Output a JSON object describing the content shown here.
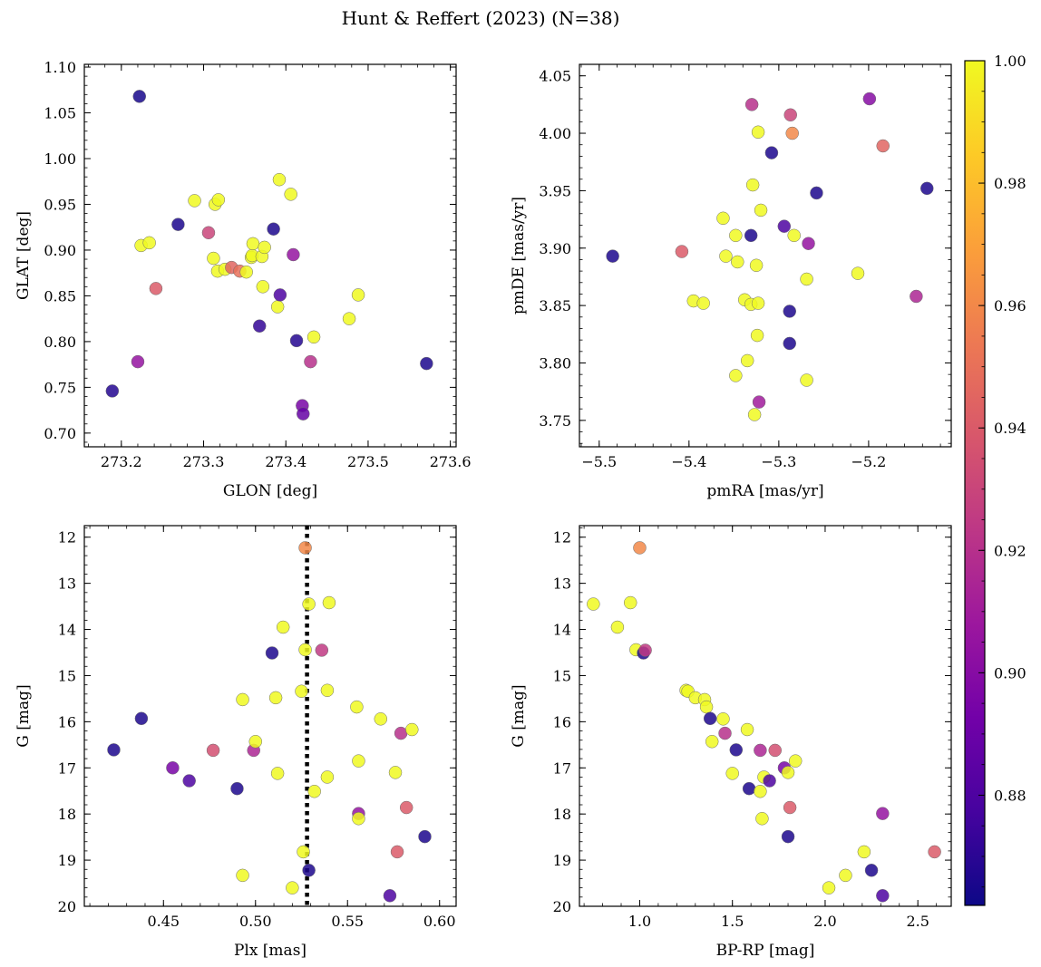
{
  "figure_title": "Hunt & Reffert (2023) (N=38)",
  "colormap": [
    "#0d0887",
    "#46039f",
    "#7201a8",
    "#9c179e",
    "#bd3786",
    "#d8576b",
    "#ed7953",
    "#fb9f3a",
    "#fdca26",
    "#f0f921"
  ],
  "colorbar": {
    "min": 0.862,
    "max": 1.0,
    "ticks": [
      0.88,
      0.9,
      0.92,
      0.94,
      0.96,
      0.98,
      1.0
    ],
    "tick_labels": [
      "0.88",
      "0.90",
      "0.92",
      "0.94",
      "0.96",
      "0.98",
      "1.00"
    ]
  },
  "chart_data": [
    {
      "type": "scatter",
      "id": "glon-glat",
      "xlabel": "GLON [deg]",
      "ylabel": "GLAT [deg]",
      "xlim": [
        273.155,
        273.607
      ],
      "ylim": [
        0.685,
        1.103
      ],
      "y_inverted": false,
      "xticks": [
        273.2,
        273.3,
        273.4,
        273.5,
        273.6
      ],
      "xtick_labels": [
        "273.2",
        "273.3",
        "273.4",
        "273.5",
        "273.6"
      ],
      "yticks": [
        0.7,
        0.75,
        0.8,
        0.85,
        0.9,
        0.95,
        1.0,
        1.05,
        1.1
      ],
      "ytick_labels": [
        "0.70",
        "0.75",
        "0.80",
        "0.85",
        "0.90",
        "0.95",
        "1.00",
        "1.05",
        "1.10"
      ],
      "points": [
        {
          "x": 273.222,
          "y": 1.068,
          "c": 0.865
        },
        {
          "x": 273.189,
          "y": 0.746,
          "c": 0.868
        },
        {
          "x": 273.22,
          "y": 0.778,
          "c": 0.905
        },
        {
          "x": 273.242,
          "y": 0.858,
          "c": 0.94
        },
        {
          "x": 273.224,
          "y": 0.905,
          "c": 1.0
        },
        {
          "x": 273.234,
          "y": 0.908,
          "c": 1.0
        },
        {
          "x": 273.269,
          "y": 0.928,
          "c": 0.866
        },
        {
          "x": 273.289,
          "y": 0.954,
          "c": 1.0
        },
        {
          "x": 273.306,
          "y": 0.919,
          "c": 0.93
        },
        {
          "x": 273.312,
          "y": 0.891,
          "c": 1.0
        },
        {
          "x": 273.317,
          "y": 0.877,
          "c": 1.0
        },
        {
          "x": 273.314,
          "y": 0.95,
          "c": 1.0
        },
        {
          "x": 273.318,
          "y": 0.955,
          "c": 1.0
        },
        {
          "x": 273.326,
          "y": 0.879,
          "c": 1.0
        },
        {
          "x": 273.334,
          "y": 0.881,
          "c": 0.945
        },
        {
          "x": 273.344,
          "y": 0.877,
          "c": 0.95
        },
        {
          "x": 273.352,
          "y": 0.876,
          "c": 1.0
        },
        {
          "x": 273.358,
          "y": 0.892,
          "c": 1.0
        },
        {
          "x": 273.359,
          "y": 0.894,
          "c": 1.0
        },
        {
          "x": 273.36,
          "y": 0.907,
          "c": 1.0
        },
        {
          "x": 273.371,
          "y": 0.893,
          "c": 1.0
        },
        {
          "x": 273.374,
          "y": 0.903,
          "c": 1.0
        },
        {
          "x": 273.372,
          "y": 0.86,
          "c": 1.0
        },
        {
          "x": 273.368,
          "y": 0.817,
          "c": 0.872
        },
        {
          "x": 273.385,
          "y": 0.923,
          "c": 0.866
        },
        {
          "x": 273.39,
          "y": 0.838,
          "c": 1.0
        },
        {
          "x": 273.392,
          "y": 0.977,
          "c": 1.0
        },
        {
          "x": 273.393,
          "y": 0.851,
          "c": 0.88
        },
        {
          "x": 273.406,
          "y": 0.961,
          "c": 1.0
        },
        {
          "x": 273.409,
          "y": 0.895,
          "c": 0.905
        },
        {
          "x": 273.413,
          "y": 0.801,
          "c": 0.868
        },
        {
          "x": 273.42,
          "y": 0.73,
          "c": 0.895
        },
        {
          "x": 273.421,
          "y": 0.721,
          "c": 0.888
        },
        {
          "x": 273.43,
          "y": 0.778,
          "c": 0.92
        },
        {
          "x": 273.434,
          "y": 0.805,
          "c": 1.0
        },
        {
          "x": 273.477,
          "y": 0.825,
          "c": 1.0
        },
        {
          "x": 273.488,
          "y": 0.851,
          "c": 1.0
        },
        {
          "x": 273.571,
          "y": 0.776,
          "c": 0.866
        }
      ]
    },
    {
      "type": "scatter",
      "id": "pmra-pmde",
      "xlabel": "pmRA [mas/yr]",
      "ylabel": "pmDE [mas/yr]",
      "xlim": [
        -5.522,
        -5.108
      ],
      "ylim": [
        3.727,
        4.06
      ],
      "y_inverted": false,
      "xticks": [
        -5.5,
        -5.4,
        -5.3,
        -5.2
      ],
      "xtick_labels": [
        "−5.5",
        "−5.4",
        "−5.3",
        "−5.2"
      ],
      "yticks": [
        3.75,
        3.8,
        3.85,
        3.9,
        3.95,
        4.0,
        4.05
      ],
      "ytick_labels": [
        "3.75",
        "3.80",
        "3.85",
        "3.90",
        "3.95",
        "4.00",
        "4.05"
      ],
      "points": [
        {
          "x": -5.485,
          "y": 3.893,
          "c": 0.866
        },
        {
          "x": -5.408,
          "y": 3.897,
          "c": 0.94
        },
        {
          "x": -5.395,
          "y": 3.854,
          "c": 1.0
        },
        {
          "x": -5.384,
          "y": 3.852,
          "c": 1.0
        },
        {
          "x": -5.362,
          "y": 3.926,
          "c": 1.0
        },
        {
          "x": -5.359,
          "y": 3.893,
          "c": 1.0
        },
        {
          "x": -5.348,
          "y": 3.911,
          "c": 1.0
        },
        {
          "x": -5.346,
          "y": 3.888,
          "c": 1.0
        },
        {
          "x": -5.348,
          "y": 3.789,
          "c": 1.0
        },
        {
          "x": -5.338,
          "y": 3.855,
          "c": 1.0
        },
        {
          "x": -5.335,
          "y": 3.802,
          "c": 1.0
        },
        {
          "x": -5.331,
          "y": 3.851,
          "c": 1.0
        },
        {
          "x": -5.331,
          "y": 3.911,
          "c": 0.866
        },
        {
          "x": -5.33,
          "y": 4.025,
          "c": 0.92
        },
        {
          "x": -5.329,
          "y": 3.955,
          "c": 1.0
        },
        {
          "x": -5.327,
          "y": 3.755,
          "c": 1.0
        },
        {
          "x": -5.325,
          "y": 3.885,
          "c": 1.0
        },
        {
          "x": -5.324,
          "y": 3.824,
          "c": 1.0
        },
        {
          "x": -5.323,
          "y": 3.852,
          "c": 1.0
        },
        {
          "x": -5.323,
          "y": 4.001,
          "c": 1.0
        },
        {
          "x": -5.322,
          "y": 3.766,
          "c": 0.91
        },
        {
          "x": -5.32,
          "y": 3.933,
          "c": 1.0
        },
        {
          "x": -5.308,
          "y": 3.983,
          "c": 0.866
        },
        {
          "x": -5.294,
          "y": 3.919,
          "c": 0.88
        },
        {
          "x": -5.288,
          "y": 3.845,
          "c": 0.866
        },
        {
          "x": -5.288,
          "y": 3.817,
          "c": 0.866
        },
        {
          "x": -5.287,
          "y": 4.016,
          "c": 0.93
        },
        {
          "x": -5.285,
          "y": 4.0,
          "c": 0.96
        },
        {
          "x": -5.283,
          "y": 3.911,
          "c": 1.0
        },
        {
          "x": -5.269,
          "y": 3.873,
          "c": 1.0
        },
        {
          "x": -5.269,
          "y": 3.785,
          "c": 1.0
        },
        {
          "x": -5.267,
          "y": 3.904,
          "c": 0.905
        },
        {
          "x": -5.258,
          "y": 3.948,
          "c": 0.866
        },
        {
          "x": -5.212,
          "y": 3.878,
          "c": 1.0
        },
        {
          "x": -5.199,
          "y": 4.03,
          "c": 0.9
        },
        {
          "x": -5.184,
          "y": 3.989,
          "c": 0.945
        },
        {
          "x": -5.147,
          "y": 3.858,
          "c": 0.915
        },
        {
          "x": -5.135,
          "y": 3.952,
          "c": 0.866
        }
      ]
    },
    {
      "type": "scatter",
      "id": "plx-g",
      "xlabel": "Plx [mas]",
      "ylabel": "G [mag]",
      "xlim": [
        0.407,
        0.609
      ],
      "ylim": [
        20.0,
        11.75
      ],
      "y_inverted": true,
      "reference_line": {
        "axis": "x",
        "value": 0.528,
        "style": "dotted"
      },
      "xticks": [
        0.45,
        0.5,
        0.55,
        0.6
      ],
      "xtick_labels": [
        "0.45",
        "0.50",
        "0.55",
        "0.60"
      ],
      "yticks": [
        12,
        13,
        14,
        15,
        16,
        17,
        18,
        19,
        20
      ],
      "ytick_labels": [
        "12",
        "13",
        "14",
        "15",
        "16",
        "17",
        "18",
        "19",
        "20"
      ],
      "points": [
        {
          "x": 0.423,
          "y": 16.61,
          "c": 0.866
        },
        {
          "x": 0.438,
          "y": 15.93,
          "c": 0.866
        },
        {
          "x": 0.455,
          "y": 17.0,
          "c": 0.895
        },
        {
          "x": 0.464,
          "y": 17.28,
          "c": 0.88
        },
        {
          "x": 0.477,
          "y": 16.62,
          "c": 0.935
        },
        {
          "x": 0.49,
          "y": 17.45,
          "c": 0.866
        },
        {
          "x": 0.493,
          "y": 15.52,
          "c": 1.0
        },
        {
          "x": 0.493,
          "y": 19.33,
          "c": 1.0
        },
        {
          "x": 0.499,
          "y": 16.62,
          "c": 0.915
        },
        {
          "x": 0.5,
          "y": 16.43,
          "c": 1.0
        },
        {
          "x": 0.509,
          "y": 14.51,
          "c": 0.866
        },
        {
          "x": 0.511,
          "y": 15.48,
          "c": 1.0
        },
        {
          "x": 0.512,
          "y": 17.12,
          "c": 1.0
        },
        {
          "x": 0.515,
          "y": 13.95,
          "c": 1.0
        },
        {
          "x": 0.52,
          "y": 19.6,
          "c": 1.0
        },
        {
          "x": 0.525,
          "y": 15.34,
          "c": 1.0
        },
        {
          "x": 0.526,
          "y": 18.82,
          "c": 1.0
        },
        {
          "x": 0.527,
          "y": 12.23,
          "c": 0.96
        },
        {
          "x": 0.527,
          "y": 14.44,
          "c": 1.0
        },
        {
          "x": 0.529,
          "y": 13.45,
          "c": 1.0
        },
        {
          "x": 0.529,
          "y": 19.22,
          "c": 0.866
        },
        {
          "x": 0.532,
          "y": 17.51,
          "c": 1.0
        },
        {
          "x": 0.536,
          "y": 14.45,
          "c": 0.925
        },
        {
          "x": 0.539,
          "y": 15.32,
          "c": 1.0
        },
        {
          "x": 0.539,
          "y": 17.2,
          "c": 1.0
        },
        {
          "x": 0.54,
          "y": 13.42,
          "c": 1.0
        },
        {
          "x": 0.555,
          "y": 15.68,
          "c": 1.0
        },
        {
          "x": 0.556,
          "y": 16.85,
          "c": 1.0
        },
        {
          "x": 0.556,
          "y": 17.99,
          "c": 0.905
        },
        {
          "x": 0.556,
          "y": 18.1,
          "c": 1.0
        },
        {
          "x": 0.568,
          "y": 15.94,
          "c": 1.0
        },
        {
          "x": 0.573,
          "y": 19.77,
          "c": 0.88
        },
        {
          "x": 0.576,
          "y": 17.1,
          "c": 1.0
        },
        {
          "x": 0.577,
          "y": 18.82,
          "c": 0.94
        },
        {
          "x": 0.579,
          "y": 16.25,
          "c": 0.92
        },
        {
          "x": 0.582,
          "y": 17.86,
          "c": 0.94
        },
        {
          "x": 0.585,
          "y": 16.17,
          "c": 1.0
        },
        {
          "x": 0.592,
          "y": 18.49,
          "c": 0.866
        }
      ]
    },
    {
      "type": "scatter",
      "id": "bprp-g",
      "xlabel": "BP-RP [mag]",
      "ylabel": "G [mag]",
      "xlim": [
        0.675,
        2.68
      ],
      "ylim": [
        20.0,
        11.75
      ],
      "y_inverted": true,
      "xticks": [
        1.0,
        1.5,
        2.0,
        2.5
      ],
      "xtick_labels": [
        "1.0",
        "1.5",
        "2.0",
        "2.5"
      ],
      "yticks": [
        12,
        13,
        14,
        15,
        16,
        17,
        18,
        19,
        20
      ],
      "ytick_labels": [
        "12",
        "13",
        "14",
        "15",
        "16",
        "17",
        "18",
        "19",
        "20"
      ],
      "points": [
        {
          "x": 0.75,
          "y": 13.45,
          "c": 1.0
        },
        {
          "x": 0.88,
          "y": 13.95,
          "c": 1.0
        },
        {
          "x": 0.95,
          "y": 13.42,
          "c": 1.0
        },
        {
          "x": 0.98,
          "y": 14.44,
          "c": 1.0
        },
        {
          "x": 1.0,
          "y": 12.23,
          "c": 0.96
        },
        {
          "x": 1.02,
          "y": 14.51,
          "c": 0.866
        },
        {
          "x": 1.03,
          "y": 14.45,
          "c": 0.925
        },
        {
          "x": 1.25,
          "y": 15.32,
          "c": 1.0
        },
        {
          "x": 1.26,
          "y": 15.34,
          "c": 1.0
        },
        {
          "x": 1.3,
          "y": 15.48,
          "c": 1.0
        },
        {
          "x": 1.35,
          "y": 15.52,
          "c": 1.0
        },
        {
          "x": 1.36,
          "y": 15.68,
          "c": 1.0
        },
        {
          "x": 1.38,
          "y": 15.93,
          "c": 0.866
        },
        {
          "x": 1.39,
          "y": 16.43,
          "c": 1.0
        },
        {
          "x": 1.45,
          "y": 15.94,
          "c": 1.0
        },
        {
          "x": 1.46,
          "y": 16.25,
          "c": 0.92
        },
        {
          "x": 1.5,
          "y": 17.12,
          "c": 1.0
        },
        {
          "x": 1.52,
          "y": 16.61,
          "c": 0.866
        },
        {
          "x": 1.58,
          "y": 16.17,
          "c": 1.0
        },
        {
          "x": 1.59,
          "y": 17.45,
          "c": 0.866
        },
        {
          "x": 1.65,
          "y": 16.62,
          "c": 0.915
        },
        {
          "x": 1.65,
          "y": 17.51,
          "c": 1.0
        },
        {
          "x": 1.66,
          "y": 18.1,
          "c": 1.0
        },
        {
          "x": 1.67,
          "y": 17.2,
          "c": 1.0
        },
        {
          "x": 1.7,
          "y": 17.28,
          "c": 0.88
        },
        {
          "x": 1.73,
          "y": 16.62,
          "c": 0.935
        },
        {
          "x": 1.78,
          "y": 17.0,
          "c": 0.895
        },
        {
          "x": 1.8,
          "y": 17.1,
          "c": 1.0
        },
        {
          "x": 1.8,
          "y": 18.49,
          "c": 0.866
        },
        {
          "x": 1.81,
          "y": 17.86,
          "c": 0.94
        },
        {
          "x": 1.84,
          "y": 16.85,
          "c": 1.0
        },
        {
          "x": 2.02,
          "y": 19.6,
          "c": 1.0
        },
        {
          "x": 2.11,
          "y": 19.33,
          "c": 1.0
        },
        {
          "x": 2.21,
          "y": 18.82,
          "c": 1.0
        },
        {
          "x": 2.25,
          "y": 19.22,
          "c": 0.866
        },
        {
          "x": 2.31,
          "y": 17.99,
          "c": 0.905
        },
        {
          "x": 2.31,
          "y": 19.77,
          "c": 0.88
        },
        {
          "x": 2.59,
          "y": 18.82,
          "c": 0.94
        }
      ]
    }
  ]
}
